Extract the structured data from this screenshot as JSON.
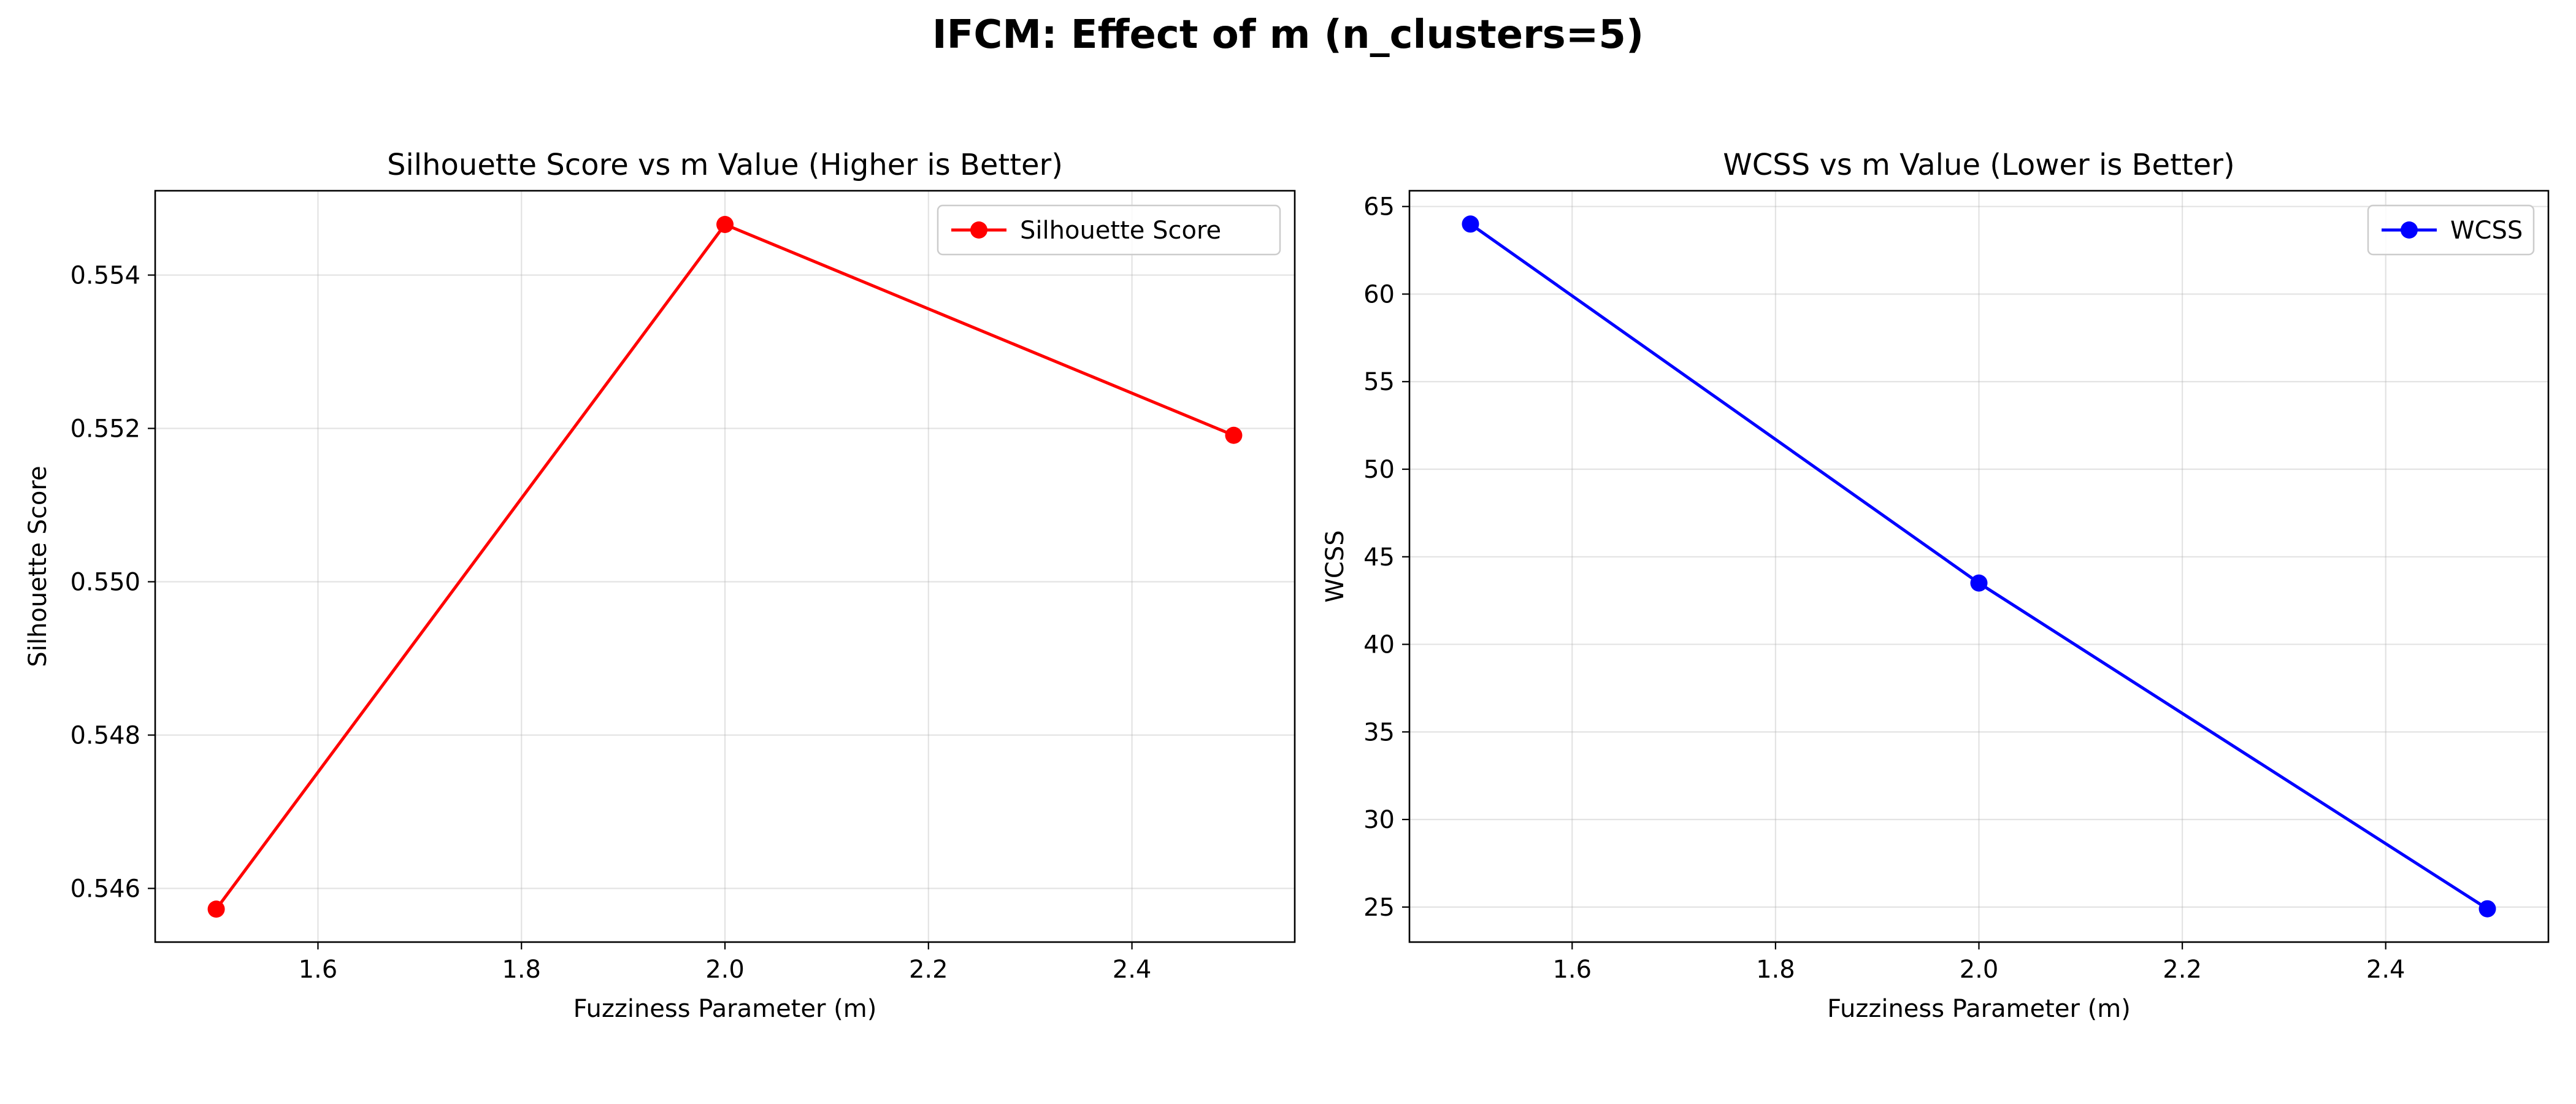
{
  "figure": {
    "title": "IFCM: Effect of m (n_clusters=5)"
  },
  "chart_data": [
    {
      "type": "line",
      "title": "Silhouette Score vs m Value (Higher is Better)",
      "xlabel": "Fuzziness Parameter (m)",
      "ylabel": "Silhouette Score",
      "x": [
        1.5,
        2.0,
        2.5
      ],
      "series": [
        {
          "name": "Silhouette Score",
          "values": [
            0.54573,
            0.55466,
            0.55191
          ],
          "color": "#ff0000"
        }
      ],
      "xlim": [
        1.44,
        2.56
      ],
      "ylim": [
        0.5453,
        0.5551
      ],
      "xticks": [
        1.6,
        1.8,
        2.0,
        2.2,
        2.4
      ],
      "xtick_labels": [
        "1.6",
        "1.8",
        "2.0",
        "2.2",
        "2.4"
      ],
      "yticks": [
        0.546,
        0.548,
        0.55,
        0.552,
        0.554
      ],
      "ytick_labels": [
        "0.546",
        "0.548",
        "0.550",
        "0.552",
        "0.554"
      ],
      "grid": true,
      "legend": "upper right",
      "marker": "circle"
    },
    {
      "type": "line",
      "title": "WCSS vs m Value (Lower is Better)",
      "xlabel": "Fuzziness Parameter (m)",
      "ylabel": "WCSS",
      "x": [
        1.5,
        2.0,
        2.5
      ],
      "series": [
        {
          "name": "WCSS",
          "values": [
            64.0,
            43.5,
            24.9
          ],
          "color": "#0000ff"
        }
      ],
      "xlim": [
        1.44,
        2.56
      ],
      "ylim": [
        23.0,
        65.9
      ],
      "xticks": [
        1.6,
        1.8,
        2.0,
        2.2,
        2.4
      ],
      "xtick_labels": [
        "1.6",
        "1.8",
        "2.0",
        "2.2",
        "2.4"
      ],
      "yticks": [
        25,
        30,
        35,
        40,
        45,
        50,
        55,
        60,
        65
      ],
      "ytick_labels": [
        "25",
        "30",
        "35",
        "40",
        "45",
        "50",
        "55",
        "60",
        "65"
      ],
      "grid": true,
      "legend": "upper right",
      "marker": "circle"
    }
  ]
}
